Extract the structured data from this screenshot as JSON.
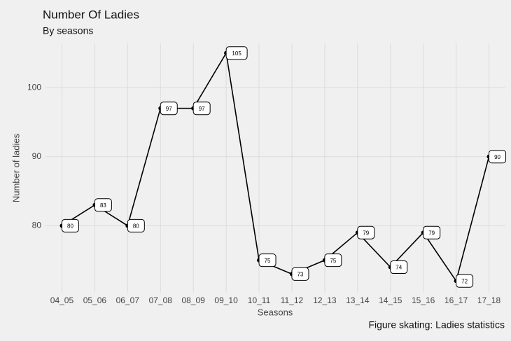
{
  "chart_data": {
    "type": "line",
    "title": "Number Of Ladies",
    "subtitle": "By seasons",
    "x_label": "Seasons",
    "y_label": "Number of ladies",
    "caption": "Figure skating: Ladies statistics",
    "categories": [
      "04_05",
      "05_06",
      "06_07",
      "07_08",
      "08_09",
      "09_10",
      "10_11",
      "11_12",
      "12_13",
      "13_14",
      "14_15",
      "15_16",
      "16_17",
      "17_18"
    ],
    "values": [
      80,
      83,
      80,
      97,
      97,
      105,
      75,
      73,
      75,
      79,
      74,
      79,
      72,
      90
    ],
    "color": "#000000",
    "ylim": [
      70.3,
      106.4
    ],
    "yticks": [
      80,
      90,
      100
    ],
    "grid": true
  }
}
